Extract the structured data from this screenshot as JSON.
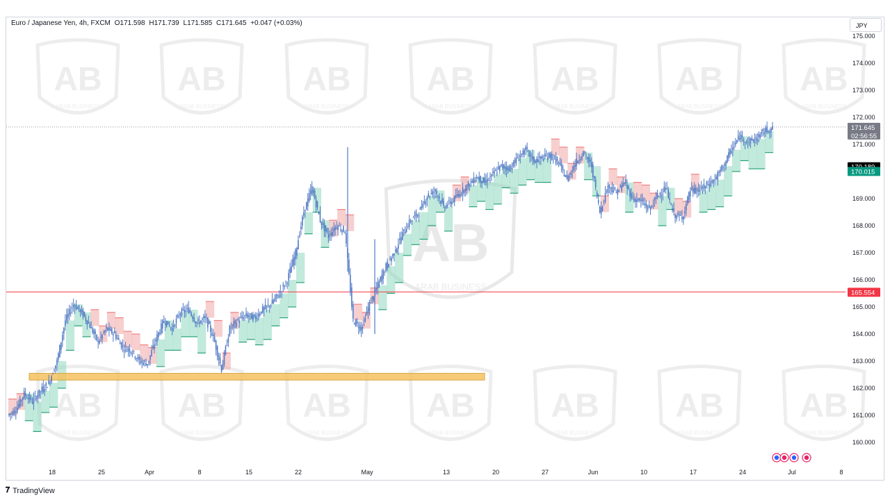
{
  "header": {
    "symbol": "Euro / Japanese Yen, 4h, FXCM",
    "open": "O171.598",
    "high": "H171.739",
    "low": "L171.585",
    "close": "C171.645",
    "change": "+0.047 (+0.03%)"
  },
  "currency_label": "JPY",
  "footer": {
    "brand": "TradingView"
  },
  "watermark": {
    "logo_text": "AB",
    "caption": "ARAB BUSINESS"
  },
  "colors": {
    "candle": "#4f78c4",
    "resistance_fill": "#f0a8a8",
    "support_fill": "#8fd8c0",
    "support_line": "#26a17a",
    "resistance_line": "#f08080",
    "zone": "#f5c160",
    "hline": "#f23645",
    "last_price_bg": "#787b86",
    "level_black_bg": "#000000",
    "level_green_bg": "#089981",
    "level_red_bg": "#f23645"
  },
  "chart_data": {
    "type": "candlestick",
    "timeframe": "4h",
    "y_axis": {
      "ticks": [
        "175.000",
        "174.000",
        "173.000",
        "172.000",
        "171.000",
        "170.000",
        "169.000",
        "168.000",
        "167.000",
        "166.000",
        "165.000",
        "164.000",
        "163.000",
        "162.000",
        "161.000",
        "160.000"
      ],
      "range": [
        159.8,
        175.0
      ]
    },
    "x_axis": {
      "ticks": [
        "18",
        "25",
        "Apr",
        "8",
        "15",
        "22",
        "May",
        "13",
        "20",
        "27",
        "Jun",
        "10",
        "17",
        "24",
        "Jul",
        "8"
      ]
    },
    "price_labels": {
      "last_price": "171.645",
      "countdown": "02:56:55",
      "level_black": "170.189",
      "level_green": "170.015",
      "level_red": "165.554"
    },
    "horizontal_line": 165.554,
    "zone": {
      "low": 162.3,
      "high": 162.55,
      "from": "Mar 11",
      "to": "May 17"
    },
    "price_path": [
      [
        0,
        161.0
      ],
      [
        1,
        161.2
      ],
      [
        2,
        161.8
      ],
      [
        3,
        161.5
      ],
      [
        4,
        161.9
      ],
      [
        5,
        162.2
      ],
      [
        6,
        163.0
      ],
      [
        7,
        164.5
      ],
      [
        8,
        165.1
      ],
      [
        9,
        164.8
      ],
      [
        10,
        164.3
      ],
      [
        11,
        163.7
      ],
      [
        12,
        164.2
      ],
      [
        13,
        164.0
      ],
      [
        14,
        163.5
      ],
      [
        15,
        163.4
      ],
      [
        16,
        163.0
      ],
      [
        17,
        162.9
      ],
      [
        18,
        163.8
      ],
      [
        19,
        164.5
      ],
      [
        20,
        164.2
      ],
      [
        21,
        164.8
      ],
      [
        22,
        164.9
      ],
      [
        23,
        164.4
      ],
      [
        24,
        164.6
      ],
      [
        25,
        163.9
      ],
      [
        26,
        162.7
      ],
      [
        27,
        164.2
      ],
      [
        28,
        164.5
      ],
      [
        29,
        164.7
      ],
      [
        30,
        164.6
      ],
      [
        31,
        164.9
      ],
      [
        32,
        165.1
      ],
      [
        33,
        165.5
      ],
      [
        34,
        166.0
      ],
      [
        35,
        167.0
      ],
      [
        36,
        168.5
      ],
      [
        37,
        169.4
      ],
      [
        38,
        168.2
      ],
      [
        39,
        167.6
      ],
      [
        40,
        168.0
      ],
      [
        41,
        167.8
      ],
      [
        42,
        164.5
      ],
      [
        43,
        164.2
      ],
      [
        44,
        165.1
      ],
      [
        45,
        165.8
      ],
      [
        46,
        166.5
      ],
      [
        47,
        167.0
      ],
      [
        48,
        167.7
      ],
      [
        49,
        168.2
      ],
      [
        50,
        168.5
      ],
      [
        51,
        169.1
      ],
      [
        52,
        169.3
      ],
      [
        53,
        168.7
      ],
      [
        54,
        168.9
      ],
      [
        55,
        169.2
      ],
      [
        56,
        169.5
      ],
      [
        57,
        169.8
      ],
      [
        58,
        169.6
      ],
      [
        59,
        169.9
      ],
      [
        60,
        170.2
      ],
      [
        61,
        170.1
      ],
      [
        62,
        170.5
      ],
      [
        63,
        170.8
      ],
      [
        64,
        170.4
      ],
      [
        65,
        170.5
      ],
      [
        66,
        170.6
      ],
      [
        67,
        170.3
      ],
      [
        68,
        169.7
      ],
      [
        69,
        170.3
      ],
      [
        70,
        170.7
      ],
      [
        71,
        170.2
      ],
      [
        72,
        168.5
      ],
      [
        73,
        169.5
      ],
      [
        74,
        169.2
      ],
      [
        75,
        169.6
      ],
      [
        76,
        169.0
      ],
      [
        77,
        168.9
      ],
      [
        78,
        168.6
      ],
      [
        79,
        169.1
      ],
      [
        80,
        169.4
      ],
      [
        81,
        168.4
      ],
      [
        82,
        168.3
      ],
      [
        83,
        169.3
      ],
      [
        84,
        169.3
      ],
      [
        85,
        169.5
      ],
      [
        86,
        169.7
      ],
      [
        87,
        170.2
      ],
      [
        88,
        170.8
      ],
      [
        89,
        171.3
      ],
      [
        90,
        171.1
      ],
      [
        91,
        171.2
      ],
      [
        92,
        171.5
      ],
      [
        93,
        171.6
      ]
    ]
  }
}
